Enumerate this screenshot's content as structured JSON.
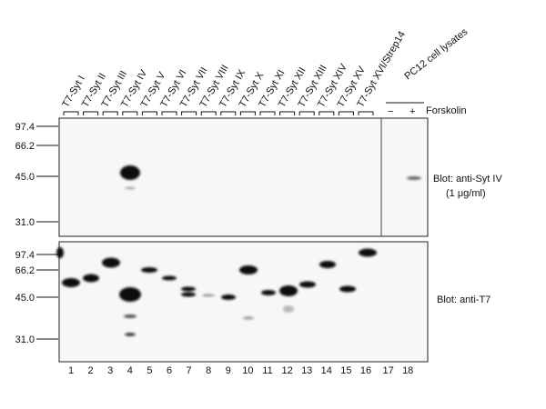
{
  "lanes": {
    "labels": [
      "T7-Syt I",
      "T7-Syt II",
      "T7-Syt III",
      "T7-Syt IV",
      "T7-Syt V",
      "T7-Syt VI",
      "T7-Syt VII",
      "T7-Syt VIII",
      "T7-Syt IX",
      "T7-Syt X",
      "T7-Syt XI",
      "T7-Syt XII",
      "T7-Syt XIII",
      "T7-Syt XIV",
      "T7-Syt XV",
      "T7-Syt XVI/Strep14"
    ],
    "numbers": [
      "1",
      "2",
      "3",
      "4",
      "5",
      "6",
      "7",
      "8",
      "9",
      "10",
      "11",
      "12",
      "13",
      "14",
      "15",
      "16",
      "17",
      "18"
    ]
  },
  "pc12": "PC12 cell lysates",
  "treatment": {
    "minus": "−",
    "plus": "+",
    "label": "Forskolin"
  },
  "top_blot": {
    "markers": [
      "97.4",
      "66.2",
      "45.0",
      "31.0"
    ],
    "label": "Blot: anti-Syt IV",
    "concentration": "(1 μg/ml)"
  },
  "bottom_blot": {
    "markers": [
      "97.4",
      "66.2",
      "45.0",
      "31.0"
    ],
    "label": "Blot: anti-T7"
  }
}
